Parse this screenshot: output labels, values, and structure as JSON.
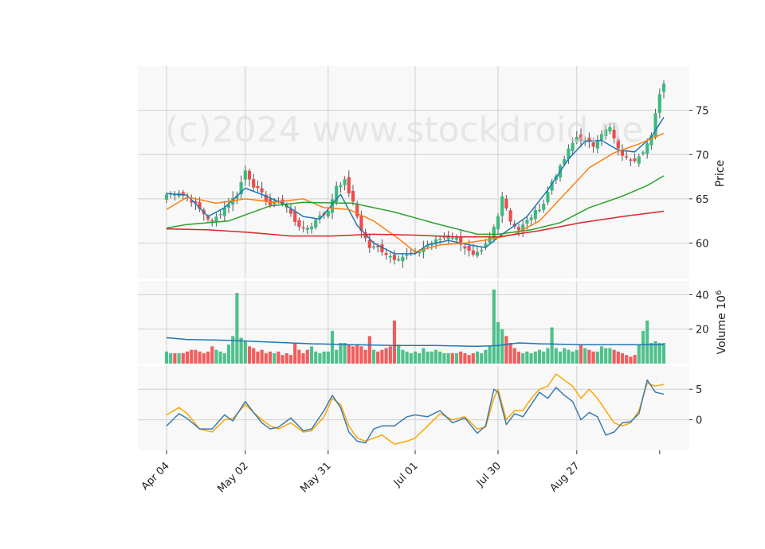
{
  "watermark": "(c)2024 www.stockdroid.ne",
  "colors": {
    "up": "#3cb97f",
    "down": "#ef4b4b",
    "ma_blue": "#1f77b4",
    "ma_orange": "#ff7f0e",
    "ma_green": "#2ca02c",
    "ma_red": "#d62728",
    "macd_blue": "#3a7bb0",
    "macd_orange": "#ffa500",
    "grid": "#d0d0d0",
    "panel_bg": "#f8f8f8"
  },
  "chart_data": {
    "type": "candlestick",
    "x_tick_labels": [
      "Apr 04",
      "May 02",
      "May 31",
      "Jul 01",
      "Jul 30",
      "Aug 27"
    ],
    "x_tick_index": [
      0,
      19,
      39,
      60,
      80,
      99
    ],
    "x_extra_tick_index": 119,
    "n_days": 121,
    "price_panel": {
      "ylabel": "Price",
      "yticks": [
        60,
        65,
        70,
        75
      ],
      "ylim": [
        56,
        80
      ],
      "close_keypoints": [
        [
          0,
          65.5
        ],
        [
          3,
          65.8
        ],
        [
          6,
          64.8
        ],
        [
          9,
          63.3
        ],
        [
          11,
          62.3
        ],
        [
          13,
          63.5
        ],
        [
          15,
          64.5
        ],
        [
          17,
          65.5
        ],
        [
          19,
          68.2
        ],
        [
          21,
          66.5
        ],
        [
          23,
          65.5
        ],
        [
          25,
          64.3
        ],
        [
          27,
          64.8
        ],
        [
          29,
          64.0
        ],
        [
          31,
          62.5
        ],
        [
          33,
          61.5
        ],
        [
          35,
          62.0
        ],
        [
          37,
          63.2
        ],
        [
          39,
          63.5
        ],
        [
          41,
          66.5
        ],
        [
          43,
          67.0
        ],
        [
          45,
          64.5
        ],
        [
          47,
          61.5
        ],
        [
          49,
          59.5
        ],
        [
          51,
          59.5
        ],
        [
          53,
          58.8
        ],
        [
          55,
          58.3
        ],
        [
          57,
          58.5
        ],
        [
          60,
          58.8
        ],
        [
          62,
          59.5
        ],
        [
          64,
          60.0
        ],
        [
          66,
          60.5
        ],
        [
          68,
          61.0
        ],
        [
          70,
          60.5
        ],
        [
          72,
          59.5
        ],
        [
          74,
          58.5
        ],
        [
          76,
          59.0
        ],
        [
          78,
          60.5
        ],
        [
          80,
          63.0
        ],
        [
          81,
          65.5
        ],
        [
          83,
          62.5
        ],
        [
          85,
          61.5
        ],
        [
          87,
          62.5
        ],
        [
          89,
          63.5
        ],
        [
          91,
          64.5
        ],
        [
          93,
          67.0
        ],
        [
          95,
          68.5
        ],
        [
          97,
          70.5
        ],
        [
          99,
          72.0
        ],
        [
          101,
          71.5
        ],
        [
          103,
          71.0
        ],
        [
          105,
          72.5
        ],
        [
          107,
          73.0
        ],
        [
          109,
          70.5
        ],
        [
          111,
          69.5
        ],
        [
          113,
          69.5
        ],
        [
          115,
          70.5
        ],
        [
          117,
          72.0
        ],
        [
          119,
          77.0
        ],
        [
          120,
          78.0
        ]
      ],
      "moving_averages": [
        {
          "color_key": "ma_blue",
          "keypoints": [
            [
              0,
              65.6
            ],
            [
              5,
              65.4
            ],
            [
              10,
              63.0
            ],
            [
              14,
              64.0
            ],
            [
              19,
              66.2
            ],
            [
              23,
              65.5
            ],
            [
              28,
              64.5
            ],
            [
              33,
              63.0
            ],
            [
              37,
              62.7
            ],
            [
              42,
              65.5
            ],
            [
              46,
              62.0
            ],
            [
              50,
              60.0
            ],
            [
              55,
              58.8
            ],
            [
              60,
              58.8
            ],
            [
              63,
              59.8
            ],
            [
              68,
              60.3
            ],
            [
              73,
              59.8
            ],
            [
              77,
              59.5
            ],
            [
              81,
              61.0
            ],
            [
              87,
              63.0
            ],
            [
              92,
              66.0
            ],
            [
              97,
              69.5
            ],
            [
              101,
              71.5
            ],
            [
              105,
              71.6
            ],
            [
              109,
              70.5
            ],
            [
              113,
              70.3
            ],
            [
              117,
              72.0
            ],
            [
              120,
              74.2
            ]
          ]
        },
        {
          "color_key": "ma_orange",
          "keypoints": [
            [
              0,
              63.8
            ],
            [
              5,
              65.2
            ],
            [
              12,
              64.5
            ],
            [
              19,
              65.0
            ],
            [
              26,
              64.6
            ],
            [
              33,
              65.0
            ],
            [
              38,
              64.0
            ],
            [
              44,
              63.8
            ],
            [
              50,
              62.5
            ],
            [
              56,
              60.5
            ],
            [
              60,
              59.0
            ],
            [
              66,
              59.8
            ],
            [
              72,
              60.0
            ],
            [
              78,
              60.4
            ],
            [
              84,
              61.0
            ],
            [
              90,
              62.5
            ],
            [
              96,
              65.5
            ],
            [
              102,
              68.5
            ],
            [
              108,
              70.2
            ],
            [
              114,
              71.2
            ],
            [
              120,
              72.4
            ]
          ]
        },
        {
          "color_key": "ma_green",
          "keypoints": [
            [
              0,
              61.7
            ],
            [
              5,
              62.1
            ],
            [
              15,
              62.5
            ],
            [
              25,
              64.2
            ],
            [
              33,
              64.6
            ],
            [
              45,
              64.5
            ],
            [
              55,
              63.5
            ],
            [
              65,
              62.2
            ],
            [
              75,
              61.0
            ],
            [
              80,
              61.0
            ],
            [
              88,
              61.5
            ],
            [
              95,
              62.3
            ],
            [
              102,
              64.0
            ],
            [
              110,
              65.3
            ],
            [
              116,
              66.5
            ],
            [
              120,
              67.6
            ]
          ]
        },
        {
          "color_key": "ma_red",
          "keypoints": [
            [
              0,
              61.6
            ],
            [
              10,
              61.5
            ],
            [
              20,
              61.2
            ],
            [
              30,
              60.8
            ],
            [
              40,
              60.8
            ],
            [
              50,
              61.0
            ],
            [
              60,
              60.9
            ],
            [
              70,
              60.7
            ],
            [
              80,
              60.7
            ],
            [
              90,
              61.4
            ],
            [
              100,
              62.3
            ],
            [
              110,
              63.0
            ],
            [
              120,
              63.6
            ]
          ]
        }
      ]
    },
    "volume_panel": {
      "ylabel": "Volume 10⁶",
      "ylabel_base": "Volume 10",
      "ylabel_exp": "6",
      "yticks": [
        20,
        40
      ],
      "ylim": [
        0,
        48
      ],
      "values_millions": [
        7,
        6,
        6,
        6,
        6,
        7,
        8,
        8,
        7,
        6,
        7,
        10,
        8,
        7,
        6,
        11,
        16,
        41,
        15,
        13,
        10,
        9,
        7,
        8,
        6,
        7,
        6,
        7,
        5,
        6,
        5,
        12,
        8,
        6,
        8,
        10,
        7,
        6,
        7,
        7,
        19,
        8,
        12,
        12,
        11,
        10,
        11,
        10,
        8,
        16,
        8,
        7,
        8,
        9,
        10,
        25,
        11,
        8,
        7,
        6,
        7,
        6,
        9,
        7,
        7,
        8,
        7,
        6,
        6,
        6,
        6,
        7,
        6,
        5,
        6,
        7,
        6,
        8,
        10,
        43,
        24,
        20,
        16,
        12,
        9,
        7,
        6,
        7,
        6,
        7,
        8,
        7,
        9,
        21,
        9,
        7,
        9,
        8,
        7,
        8,
        11,
        9,
        8,
        7,
        7,
        10,
        9,
        9,
        8,
        7,
        6,
        5,
        4,
        5,
        11,
        19,
        25,
        12,
        13,
        12,
        12
      ],
      "volume_ma_keypoints": [
        [
          0,
          15.0
        ],
        [
          5,
          14.0
        ],
        [
          15,
          13.5
        ],
        [
          25,
          12.5
        ],
        [
          35,
          11.5
        ],
        [
          45,
          11.0
        ],
        [
          55,
          10.5
        ],
        [
          65,
          10.5
        ],
        [
          75,
          10.0
        ],
        [
          80,
          10.5
        ],
        [
          85,
          12.0
        ],
        [
          90,
          11.5
        ],
        [
          100,
          11.0
        ],
        [
          110,
          11.0
        ],
        [
          120,
          11.0
        ]
      ]
    },
    "macd_panel": {
      "yticks": [
        0,
        5
      ],
      "ylim": [
        -5,
        8.8
      ],
      "macd_keypoints": [
        [
          0,
          -1.0
        ],
        [
          3,
          1.0
        ],
        [
          5,
          0.2
        ],
        [
          8,
          -1.5
        ],
        [
          11,
          -1.5
        ],
        [
          14,
          0.8
        ],
        [
          16,
          -0.2
        ],
        [
          19,
          3.0
        ],
        [
          21,
          1.2
        ],
        [
          23,
          -0.5
        ],
        [
          25,
          -1.5
        ],
        [
          27,
          -1.2
        ],
        [
          30,
          0.3
        ],
        [
          33,
          -1.8
        ],
        [
          35,
          -1.5
        ],
        [
          38,
          1.5
        ],
        [
          40,
          4.0
        ],
        [
          42,
          2.0
        ],
        [
          44,
          -2.0
        ],
        [
          46,
          -3.5
        ],
        [
          48,
          -3.8
        ],
        [
          50,
          -1.5
        ],
        [
          52,
          -1.0
        ],
        [
          55,
          -1.0
        ],
        [
          58,
          0.5
        ],
        [
          60,
          0.8
        ],
        [
          63,
          0.5
        ],
        [
          66,
          1.5
        ],
        [
          69,
          -0.5
        ],
        [
          72,
          0.3
        ],
        [
          75,
          -2.2
        ],
        [
          77,
          -1.0
        ],
        [
          79,
          5.0
        ],
        [
          80,
          4.5
        ],
        [
          82,
          -0.8
        ],
        [
          84,
          1.0
        ],
        [
          86,
          0.5
        ],
        [
          88,
          2.5
        ],
        [
          90,
          4.5
        ],
        [
          92,
          3.5
        ],
        [
          94,
          5.3
        ],
        [
          96,
          4.0
        ],
        [
          98,
          3.0
        ],
        [
          100,
          0.0
        ],
        [
          102,
          1.2
        ],
        [
          104,
          0.5
        ],
        [
          106,
          -2.5
        ],
        [
          108,
          -2.0
        ],
        [
          110,
          -0.5
        ],
        [
          112,
          -0.3
        ],
        [
          114,
          1.0
        ],
        [
          116,
          6.5
        ],
        [
          118,
          4.5
        ],
        [
          120,
          4.2
        ]
      ],
      "signal_keypoints": [
        [
          0,
          0.8
        ],
        [
          3,
          2.0
        ],
        [
          5,
          1.0
        ],
        [
          8,
          -1.5
        ],
        [
          11,
          -2.0
        ],
        [
          14,
          0.0
        ],
        [
          16,
          0.2
        ],
        [
          19,
          2.5
        ],
        [
          21,
          1.2
        ],
        [
          23,
          0.0
        ],
        [
          25,
          -1.0
        ],
        [
          27,
          -1.5
        ],
        [
          30,
          -0.5
        ],
        [
          33,
          -2.0
        ],
        [
          35,
          -1.8
        ],
        [
          38,
          0.5
        ],
        [
          40,
          3.5
        ],
        [
          42,
          2.5
        ],
        [
          44,
          -1.0
        ],
        [
          46,
          -3.0
        ],
        [
          48,
          -3.5
        ],
        [
          50,
          -3.0
        ],
        [
          52,
          -2.5
        ],
        [
          55,
          -4.0
        ],
        [
          58,
          -3.5
        ],
        [
          60,
          -3.0
        ],
        [
          63,
          -1.0
        ],
        [
          66,
          1.0
        ],
        [
          69,
          0.0
        ],
        [
          72,
          0.5
        ],
        [
          75,
          -1.5
        ],
        [
          77,
          -1.2
        ],
        [
          79,
          3.5
        ],
        [
          80,
          5.0
        ],
        [
          82,
          0.0
        ],
        [
          84,
          1.5
        ],
        [
          86,
          1.5
        ],
        [
          88,
          3.5
        ],
        [
          90,
          5.0
        ],
        [
          92,
          5.5
        ],
        [
          94,
          7.5
        ],
        [
          96,
          6.5
        ],
        [
          98,
          5.5
        ],
        [
          100,
          3.5
        ],
        [
          102,
          5.0
        ],
        [
          104,
          3.5
        ],
        [
          106,
          1.5
        ],
        [
          108,
          -0.5
        ],
        [
          110,
          -1.0
        ],
        [
          112,
          -0.5
        ],
        [
          114,
          1.5
        ],
        [
          116,
          6.0
        ],
        [
          118,
          5.5
        ],
        [
          120,
          5.8
        ]
      ]
    }
  }
}
